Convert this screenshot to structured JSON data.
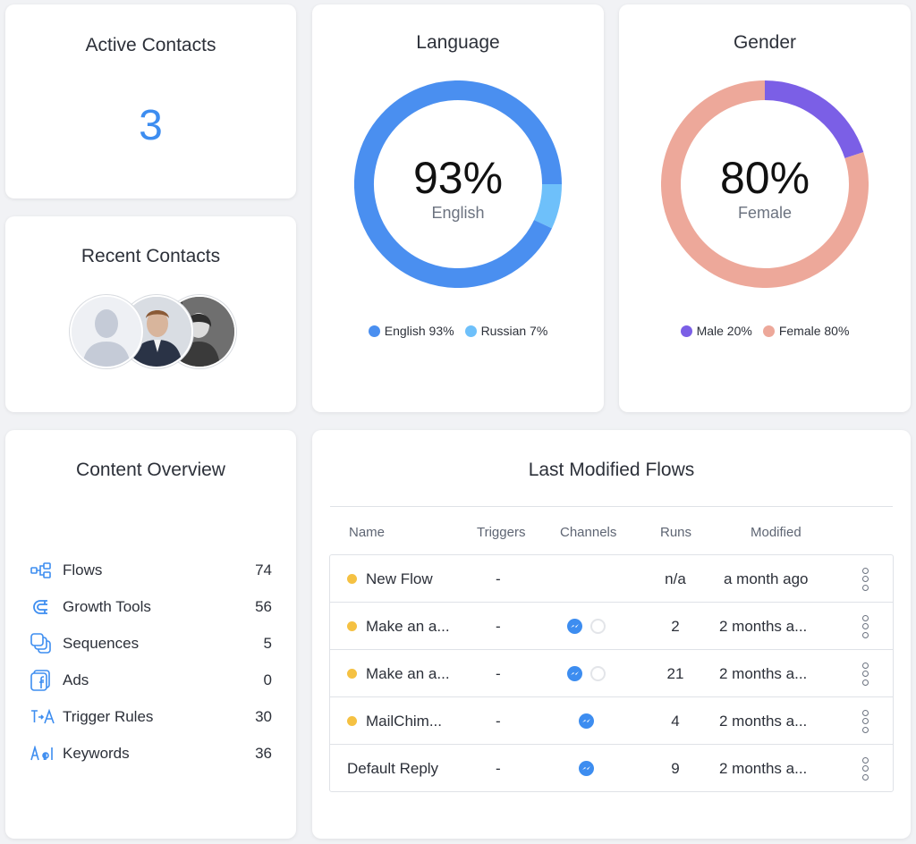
{
  "active_contacts": {
    "title": "Active Contacts",
    "value": "3"
  },
  "recent_contacts": {
    "title": "Recent Contacts"
  },
  "language": {
    "title": "Language",
    "center_value": "93%",
    "center_label": "English",
    "legend": [
      {
        "label": "English 93%",
        "color": "#4a8ff0"
      },
      {
        "label": "Russian 7%",
        "color": "#6ec0fa"
      }
    ]
  },
  "gender": {
    "title": "Gender",
    "center_value": "80%",
    "center_label": "Female",
    "legend": [
      {
        "label": "Male 20%",
        "color": "#7b5fe6"
      },
      {
        "label": "Female 80%",
        "color": "#eda89a"
      }
    ]
  },
  "chart_data": [
    {
      "type": "pie",
      "title": "Language",
      "categories": [
        "English",
        "Russian"
      ],
      "values": [
        93,
        7
      ]
    },
    {
      "type": "pie",
      "title": "Gender",
      "categories": [
        "Male",
        "Female"
      ],
      "values": [
        20,
        80
      ]
    }
  ],
  "content_overview": {
    "title": "Content Overview",
    "items": [
      {
        "label": "Flows",
        "count": "74",
        "icon": "flows-icon"
      },
      {
        "label": "Growth Tools",
        "count": "56",
        "icon": "magnet-icon"
      },
      {
        "label": "Sequences",
        "count": "5",
        "icon": "sequences-icon"
      },
      {
        "label": "Ads",
        "count": "0",
        "icon": "facebook-ads-icon"
      },
      {
        "label": "Trigger Rules",
        "count": "30",
        "icon": "trigger-rules-icon"
      },
      {
        "label": "Keywords",
        "count": "36",
        "icon": "keywords-icon"
      }
    ]
  },
  "flows": {
    "title": "Last Modified Flows",
    "columns": [
      "Name",
      "Triggers",
      "Channels",
      "Runs",
      "Modified"
    ],
    "rows": [
      {
        "name": "New Flow",
        "triggers": "-",
        "runs": "n/a",
        "modified": "a month ago",
        "status": "draft"
      },
      {
        "name": "Make an a...",
        "triggers": "-",
        "runs": "2",
        "modified": "2 months a...",
        "status": "draft"
      },
      {
        "name": "Make an a...",
        "triggers": "-",
        "runs": "21",
        "modified": "2 months a...",
        "status": "draft"
      },
      {
        "name": "MailChim...",
        "triggers": "-",
        "runs": "4",
        "modified": "2 months a...",
        "status": "draft"
      },
      {
        "name": "Default Reply",
        "triggers": "-",
        "runs": "9",
        "modified": "2 months a...",
        "status": "published"
      }
    ],
    "accent": "#3d8df0"
  }
}
